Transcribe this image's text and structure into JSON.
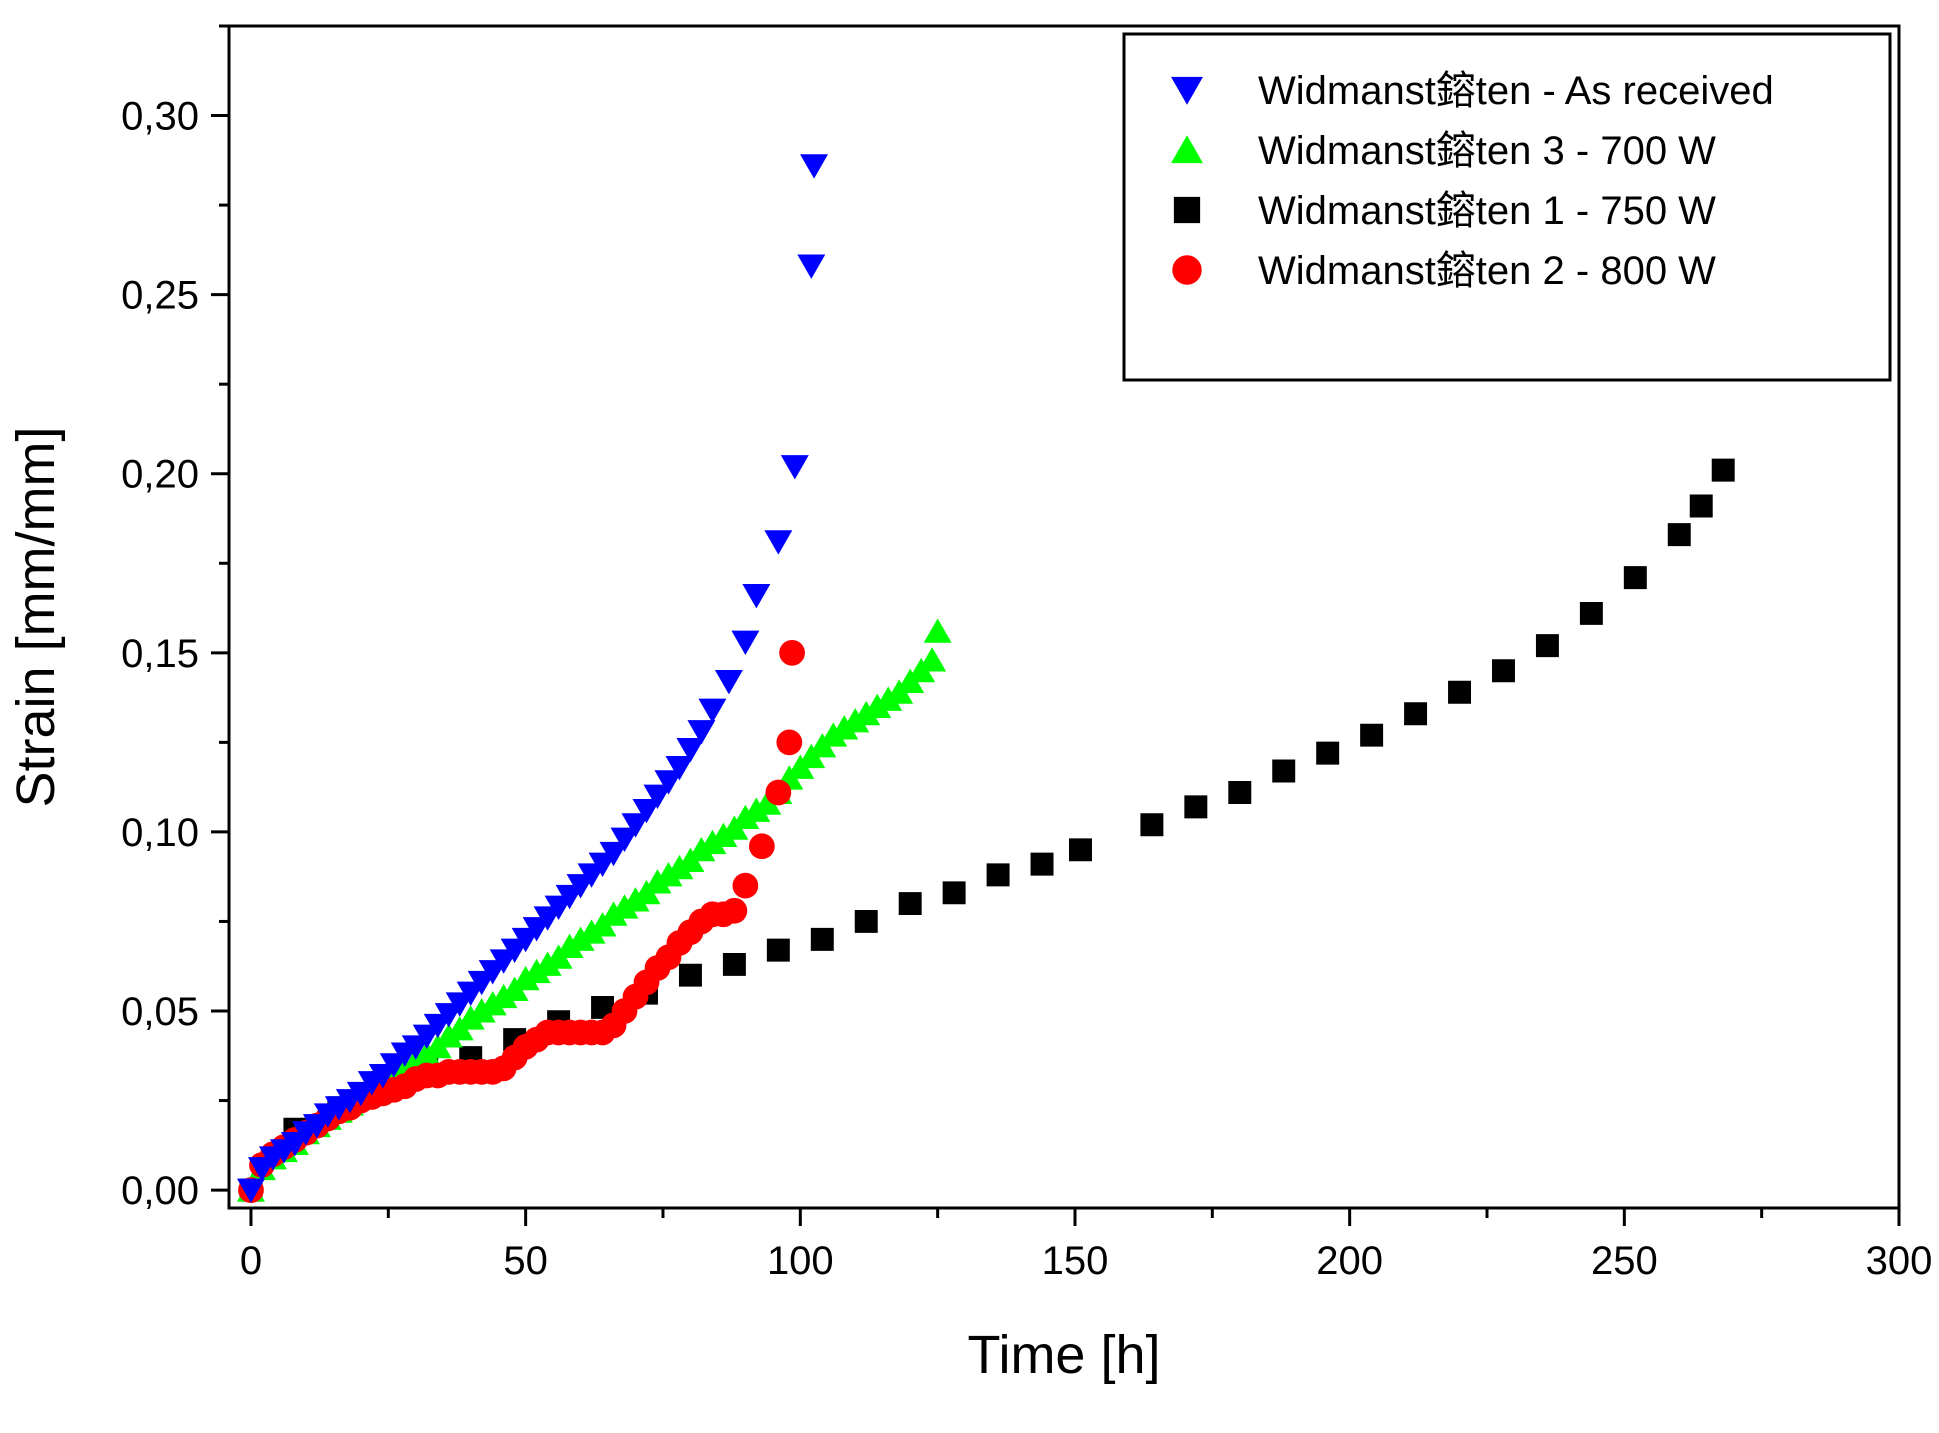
{
  "chart_data": {
    "type": "scatter",
    "title": "",
    "xlabel": "Time [h]",
    "ylabel": "Strain [mm/mm]",
    "xlim": [
      -4,
      300
    ],
    "ylim": [
      -0.005,
      0.325
    ],
    "xticks": [
      0,
      50,
      100,
      150,
      200,
      250,
      300
    ],
    "xtick_labels": [
      "0",
      "50",
      "100",
      "150",
      "200",
      "250",
      "300"
    ],
    "yticks": [
      0.0,
      0.05,
      0.1,
      0.15,
      0.2,
      0.25,
      0.3
    ],
    "ytick_labels": [
      "0,00",
      "0,05",
      "0,10",
      "0,15",
      "0,20",
      "0,25",
      "0,30"
    ],
    "grid": false,
    "legend_position": "top-right",
    "series": [
      {
        "name": "Widmanst鎔ten - As received",
        "marker": "triangle-down",
        "color": "#0000ff",
        "points": [
          [
            0,
            0.0
          ],
          [
            2,
            0.006
          ],
          [
            4,
            0.009
          ],
          [
            6,
            0.011
          ],
          [
            8,
            0.013
          ],
          [
            10,
            0.016
          ],
          [
            12,
            0.018
          ],
          [
            14,
            0.021
          ],
          [
            16,
            0.023
          ],
          [
            18,
            0.025
          ],
          [
            20,
            0.027
          ],
          [
            22,
            0.03
          ],
          [
            24,
            0.032
          ],
          [
            26,
            0.035
          ],
          [
            28,
            0.038
          ],
          [
            30,
            0.04
          ],
          [
            32,
            0.043
          ],
          [
            34,
            0.046
          ],
          [
            36,
            0.049
          ],
          [
            38,
            0.052
          ],
          [
            40,
            0.055
          ],
          [
            42,
            0.058
          ],
          [
            44,
            0.061
          ],
          [
            46,
            0.064
          ],
          [
            48,
            0.067
          ],
          [
            50,
            0.07
          ],
          [
            52,
            0.073
          ],
          [
            54,
            0.076
          ],
          [
            56,
            0.079
          ],
          [
            58,
            0.082
          ],
          [
            60,
            0.085
          ],
          [
            62,
            0.088
          ],
          [
            64,
            0.091
          ],
          [
            66,
            0.094
          ],
          [
            68,
            0.098
          ],
          [
            70,
            0.102
          ],
          [
            72,
            0.106
          ],
          [
            74,
            0.11
          ],
          [
            76,
            0.114
          ],
          [
            78,
            0.118
          ],
          [
            80,
            0.123
          ],
          [
            82,
            0.128
          ],
          [
            84,
            0.134
          ],
          [
            87,
            0.142
          ],
          [
            90,
            0.153
          ],
          [
            92,
            0.166
          ],
          [
            96,
            0.181
          ],
          [
            99,
            0.202
          ],
          [
            102,
            0.258
          ],
          [
            102.5,
            0.286
          ]
        ]
      },
      {
        "name": "Widmanst鎔ten 3 - 700 W",
        "marker": "triangle-up",
        "color": "#00ff00",
        "points": [
          [
            0,
            0.0
          ],
          [
            2,
            0.006
          ],
          [
            4,
            0.009
          ],
          [
            6,
            0.011
          ],
          [
            8,
            0.013
          ],
          [
            10,
            0.016
          ],
          [
            12,
            0.018
          ],
          [
            14,
            0.02
          ],
          [
            16,
            0.022
          ],
          [
            18,
            0.024
          ],
          [
            20,
            0.026
          ],
          [
            22,
            0.028
          ],
          [
            24,
            0.03
          ],
          [
            26,
            0.032
          ],
          [
            28,
            0.034
          ],
          [
            30,
            0.036
          ],
          [
            32,
            0.038
          ],
          [
            34,
            0.04
          ],
          [
            36,
            0.043
          ],
          [
            38,
            0.045
          ],
          [
            40,
            0.048
          ],
          [
            42,
            0.05
          ],
          [
            44,
            0.052
          ],
          [
            46,
            0.054
          ],
          [
            48,
            0.056
          ],
          [
            50,
            0.059
          ],
          [
            52,
            0.061
          ],
          [
            54,
            0.063
          ],
          [
            56,
            0.065
          ],
          [
            58,
            0.068
          ],
          [
            60,
            0.07
          ],
          [
            62,
            0.072
          ],
          [
            64,
            0.074
          ],
          [
            66,
            0.077
          ],
          [
            68,
            0.079
          ],
          [
            70,
            0.081
          ],
          [
            72,
            0.083
          ],
          [
            74,
            0.086
          ],
          [
            76,
            0.088
          ],
          [
            78,
            0.09
          ],
          [
            80,
            0.092
          ],
          [
            82,
            0.095
          ],
          [
            84,
            0.097
          ],
          [
            86,
            0.099
          ],
          [
            88,
            0.101
          ],
          [
            90,
            0.104
          ],
          [
            92,
            0.106
          ],
          [
            94,
            0.108
          ],
          [
            96,
            0.111
          ],
          [
            98,
            0.115
          ],
          [
            100,
            0.118
          ],
          [
            102,
            0.121
          ],
          [
            104,
            0.124
          ],
          [
            106,
            0.127
          ],
          [
            108,
            0.129
          ],
          [
            110,
            0.131
          ],
          [
            112,
            0.133
          ],
          [
            114,
            0.135
          ],
          [
            116,
            0.137
          ],
          [
            118,
            0.139
          ],
          [
            120,
            0.142
          ],
          [
            122,
            0.145
          ],
          [
            124,
            0.148
          ],
          [
            125,
            0.156
          ]
        ]
      },
      {
        "name": "Widmanst鎔ten 1 - 750 W",
        "marker": "square",
        "color": "#000000",
        "points": [
          [
            0,
            0.0
          ],
          [
            8,
            0.017
          ],
          [
            16,
            0.023
          ],
          [
            24,
            0.03
          ],
          [
            32,
            0.034
          ],
          [
            40,
            0.037
          ],
          [
            48,
            0.042
          ],
          [
            56,
            0.047
          ],
          [
            64,
            0.051
          ],
          [
            72,
            0.055
          ],
          [
            80,
            0.06
          ],
          [
            88,
            0.063
          ],
          [
            96,
            0.067
          ],
          [
            104,
            0.07
          ],
          [
            112,
            0.075
          ],
          [
            120,
            0.08
          ],
          [
            128,
            0.083
          ],
          [
            136,
            0.088
          ],
          [
            144,
            0.091
          ],
          [
            151,
            0.095
          ],
          [
            164,
            0.102
          ],
          [
            172,
            0.107
          ],
          [
            180,
            0.111
          ],
          [
            188,
            0.117
          ],
          [
            196,
            0.122
          ],
          [
            204,
            0.127
          ],
          [
            212,
            0.133
          ],
          [
            220,
            0.139
          ],
          [
            228,
            0.145
          ],
          [
            236,
            0.152
          ],
          [
            244,
            0.161
          ],
          [
            252,
            0.171
          ],
          [
            260,
            0.183
          ],
          [
            264,
            0.191
          ],
          [
            268,
            0.201
          ]
        ]
      },
      {
        "name": "Widmanst鎔ten 2 - 800 W",
        "marker": "circle",
        "color": "#ff0000",
        "points": [
          [
            0,
            0.0
          ],
          [
            2,
            0.007
          ],
          [
            4,
            0.01
          ],
          [
            6,
            0.012
          ],
          [
            8,
            0.014
          ],
          [
            10,
            0.016
          ],
          [
            12,
            0.018
          ],
          [
            14,
            0.02
          ],
          [
            16,
            0.022
          ],
          [
            18,
            0.023
          ],
          [
            20,
            0.025
          ],
          [
            22,
            0.026
          ],
          [
            24,
            0.027
          ],
          [
            26,
            0.028
          ],
          [
            28,
            0.029
          ],
          [
            30,
            0.031
          ],
          [
            32,
            0.032
          ],
          [
            34,
            0.032
          ],
          [
            36,
            0.033
          ],
          [
            38,
            0.033
          ],
          [
            40,
            0.033
          ],
          [
            42,
            0.033
          ],
          [
            44,
            0.033
          ],
          [
            46,
            0.034
          ],
          [
            48,
            0.037
          ],
          [
            50,
            0.04
          ],
          [
            52,
            0.042
          ],
          [
            54,
            0.044
          ],
          [
            56,
            0.044
          ],
          [
            58,
            0.044
          ],
          [
            60,
            0.044
          ],
          [
            62,
            0.044
          ],
          [
            64,
            0.044
          ],
          [
            66,
            0.046
          ],
          [
            68,
            0.05
          ],
          [
            70,
            0.054
          ],
          [
            72,
            0.058
          ],
          [
            74,
            0.062
          ],
          [
            76,
            0.065
          ],
          [
            78,
            0.069
          ],
          [
            80,
            0.072
          ],
          [
            82,
            0.075
          ],
          [
            84,
            0.077
          ],
          [
            86,
            0.077
          ],
          [
            88,
            0.078
          ],
          [
            90,
            0.085
          ],
          [
            93,
            0.096
          ],
          [
            96,
            0.111
          ],
          [
            98,
            0.125
          ],
          [
            98.5,
            0.15
          ]
        ]
      }
    ]
  }
}
